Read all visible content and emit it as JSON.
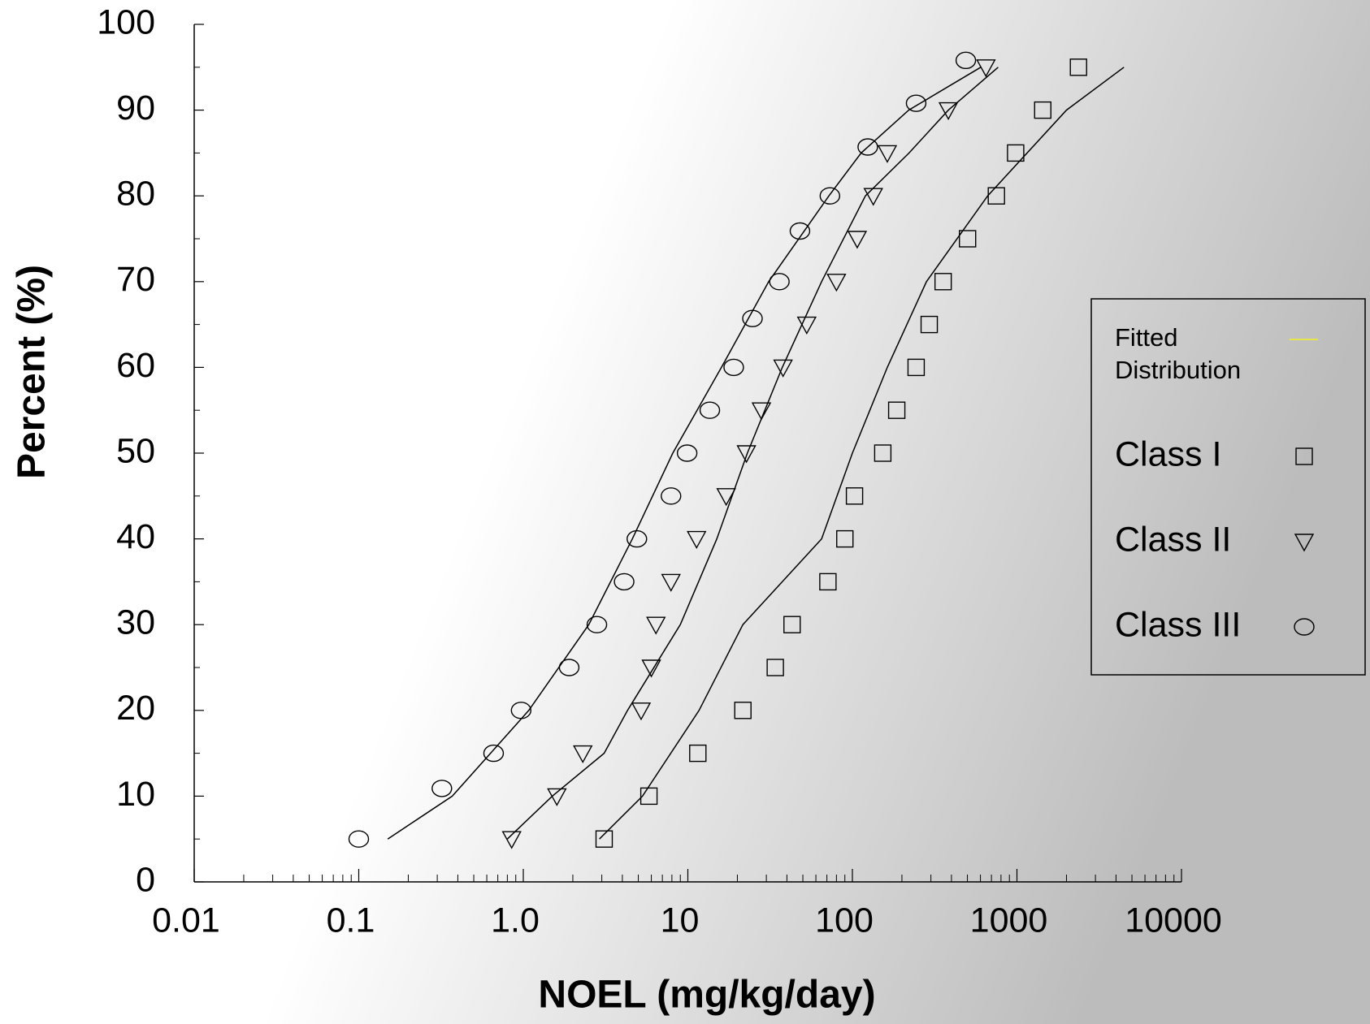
{
  "chart_data": {
    "type": "scatter",
    "x_label": "NOEL (mg/kg/day)",
    "y_label": "Percent (%)",
    "xscale": "log",
    "xlim": [
      0.01,
      10000
    ],
    "ylim": [
      0,
      100
    ],
    "xticks": [
      {
        "value": 0.01,
        "label": "0.01"
      },
      0.1,
      {
        "value": 1,
        "label": "1.0"
      },
      10,
      100,
      1000,
      10000
    ],
    "xminorticks": [
      0.02,
      0.03,
      0.04,
      0.05,
      0.06,
      0.07,
      0.08,
      0.09,
      0.2,
      0.3,
      0.4,
      0.5,
      0.6,
      0.7,
      0.8,
      0.9,
      2,
      3,
      4,
      5,
      6,
      7,
      8,
      9,
      20,
      30,
      40,
      50,
      60,
      70,
      80,
      90,
      200,
      300,
      400,
      500,
      600,
      700,
      800,
      900,
      2000,
      3000,
      4000,
      5000,
      6000,
      7000,
      8000,
      9000
    ],
    "yticks": [
      0,
      10,
      20,
      30,
      40,
      50,
      60,
      70,
      80,
      90,
      100
    ],
    "yminorticks": [
      5,
      15,
      25,
      35,
      45,
      55,
      65,
      75,
      85,
      95
    ],
    "fitted": {
      "name": "Fitted Distribution",
      "color": "#000000",
      "legend_color": "#e6e64a",
      "lines": [
        {
          "x": [
            2.9,
            5.3,
            11.7,
            21.6,
            65,
            100,
            163,
            282,
            664,
            2000,
            4470
          ],
          "values": [
            5,
            10,
            20,
            30,
            40,
            50,
            60,
            70,
            80,
            90,
            95
          ]
        },
        {
          "x": [
            0.8,
            1.5,
            3.1,
            4.3,
            9,
            15,
            23,
            37.5,
            65,
            120,
            221,
            383,
            769
          ],
          "values": [
            5,
            10,
            15,
            20,
            30,
            40,
            50,
            60,
            70,
            80,
            85,
            90,
            95
          ]
        },
        {
          "x": [
            0.15,
            0.37,
            1.08,
            2.5,
            4.6,
            8.1,
            16,
            31,
            72,
            113,
            220,
            603
          ],
          "values": [
            5,
            10,
            20,
            30,
            40,
            50,
            60,
            70,
            80,
            85,
            90,
            95
          ]
        }
      ]
    },
    "series": [
      {
        "name": "Class I",
        "marker": "square",
        "color": "#000000",
        "x": [
          3.1,
          5.8,
          11.5,
          21.6,
          34,
          43,
          71,
          90,
          103,
          153,
          186,
          244,
          293,
          356,
          501,
          750,
          982,
          1435,
          2366
        ],
        "values": [
          5,
          10,
          15,
          20,
          25,
          30,
          35,
          40,
          45,
          50,
          55,
          60,
          65,
          70,
          75,
          80,
          85,
          90,
          95
        ]
      },
      {
        "name": "Class II",
        "marker": "triangle",
        "color": "#000000",
        "x": [
          0.85,
          1.6,
          2.3,
          5.2,
          6.0,
          6.4,
          7.9,
          11.3,
          17.1,
          22.7,
          28,
          37.9,
          52.8,
          80,
          107,
          134,
          163,
          383,
          648
        ],
        "values": [
          5,
          10,
          15,
          20,
          25,
          30,
          35,
          40,
          45,
          50,
          55,
          60,
          65,
          70,
          75,
          80,
          85,
          90,
          95
        ]
      },
      {
        "name": "Class III",
        "marker": "circle",
        "color": "#000000",
        "x": [
          0.1,
          0.32,
          0.66,
          0.97,
          1.9,
          2.8,
          4.1,
          4.9,
          7.9,
          9.9,
          13.6,
          19,
          24.7,
          36,
          48,
          73,
          124,
          244,
          489
        ],
        "values": [
          5,
          10.9,
          15,
          20,
          25,
          30,
          35,
          40,
          45,
          50,
          55,
          60,
          65.7,
          70,
          75.9,
          80,
          85.7,
          90.8,
          95.8
        ]
      }
    ]
  }
}
